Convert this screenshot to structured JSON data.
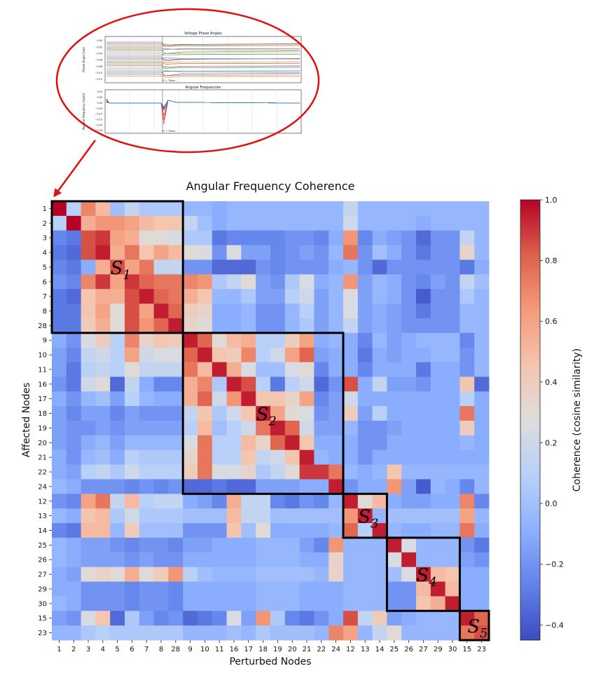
{
  "inset": {
    "plot1": {
      "title": "Voltage Phase Angles",
      "ylabel": "Phase Angle [rad]",
      "yticks": [
        "0.00",
        "−0.02",
        "−0.04",
        "−0.06",
        "−0.08",
        "−0.10",
        "−0.12"
      ],
      "event_label": "t* = 7secs"
    },
    "plot2": {
      "title": "Angular Frequencies",
      "ylabel": "Angular Frequency [rad/s]",
      "yticks": [
        "0.10",
        "0.05",
        "0.00",
        "−0.05",
        "−0.10",
        "−0.15",
        "−0.20",
        "−0.25"
      ],
      "event_label": "t* = 7secs"
    }
  },
  "chart_data": {
    "type": "heatmap",
    "title": "Angular Frequency Coherence",
    "xlabel": "Perturbed Nodes",
    "ylabel": "Affected Nodes",
    "nodes": [
      "1",
      "2",
      "3",
      "4",
      "5",
      "6",
      "7",
      "8",
      "28",
      "9",
      "10",
      "11",
      "16",
      "17",
      "18",
      "19",
      "20",
      "21",
      "22",
      "24",
      "12",
      "13",
      "14",
      "25",
      "26",
      "27",
      "29",
      "30",
      "15",
      "23"
    ],
    "colorbar": {
      "label": "Coherence (cosine similarity)",
      "vmin": -0.45,
      "vmax": 1.0,
      "ticks": [
        1.0,
        0.8,
        0.6,
        0.4,
        0.2,
        0.0,
        -0.2,
        -0.4
      ],
      "tick_labels": [
        "1.0",
        "0.8",
        "0.6",
        "0.4",
        "0.2",
        "0.0",
        "−0.2",
        "−0.4"
      ]
    },
    "clusters": [
      {
        "label": "S1",
        "base": "S",
        "sub": "1",
        "start": 0,
        "end": 8
      },
      {
        "label": "S2",
        "base": "S",
        "sub": "2",
        "start": 9,
        "end": 19
      },
      {
        "label": "S3",
        "base": "S",
        "sub": "3",
        "start": 20,
        "end": 22
      },
      {
        "label": "S4",
        "base": "S",
        "sub": "4",
        "start": 23,
        "end": 27
      },
      {
        "label": "S5",
        "base": "S",
        "sub": "5",
        "start": 28,
        "end": 29
      }
    ],
    "matrix": [
      [
        1.0,
        0.1,
        0.7,
        0.5,
        0.0,
        0.15,
        0.05,
        0.05,
        0.05,
        -0.05,
        -0.05,
        -0.1,
        -0.05,
        -0.05,
        -0.05,
        -0.05,
        -0.05,
        -0.05,
        -0.05,
        -0.05,
        0.15,
        -0.05,
        -0.05,
        -0.05,
        -0.05,
        -0.05,
        -0.05,
        -0.05,
        -0.05,
        -0.05
      ],
      [
        0.1,
        1.0,
        0.55,
        0.65,
        0.65,
        0.6,
        0.5,
        0.45,
        0.45,
        0.15,
        0.0,
        -0.1,
        -0.05,
        -0.05,
        -0.05,
        -0.05,
        -0.05,
        -0.05,
        -0.05,
        -0.05,
        0.2,
        -0.05,
        -0.05,
        -0.05,
        -0.05,
        -0.1,
        -0.05,
        -0.05,
        -0.05,
        -0.05
      ],
      [
        -0.25,
        -0.3,
        0.85,
        0.9,
        0.6,
        0.55,
        0.3,
        0.3,
        0.25,
        0.05,
        0.05,
        -0.3,
        -0.25,
        -0.25,
        -0.25,
        -0.25,
        -0.2,
        -0.2,
        -0.25,
        -0.1,
        0.65,
        -0.25,
        -0.1,
        -0.15,
        -0.2,
        -0.35,
        -0.2,
        -0.2,
        0.15,
        -0.05
      ],
      [
        -0.3,
        -0.35,
        0.85,
        0.95,
        0.55,
        0.75,
        0.45,
        0.6,
        0.5,
        0.3,
        0.25,
        -0.2,
        0.25,
        -0.15,
        -0.15,
        -0.25,
        -0.2,
        -0.15,
        -0.2,
        -0.05,
        0.75,
        -0.2,
        0.0,
        -0.1,
        -0.2,
        -0.3,
        -0.2,
        -0.2,
        0.35,
        -0.05
      ],
      [
        -0.25,
        -0.3,
        -0.1,
        0.55,
        0.85,
        0.6,
        0.75,
        0.15,
        0.15,
        -0.2,
        -0.2,
        -0.35,
        -0.35,
        -0.35,
        -0.2,
        -0.25,
        -0.2,
        -0.2,
        -0.2,
        -0.1,
        -0.05,
        -0.2,
        -0.35,
        -0.2,
        -0.2,
        -0.2,
        -0.2,
        -0.2,
        -0.3,
        -0.1
      ],
      [
        -0.2,
        -0.25,
        0.7,
        0.9,
        0.6,
        0.9,
        0.8,
        0.75,
        0.75,
        0.7,
        0.65,
        0.05,
        0.15,
        0.3,
        -0.15,
        -0.2,
        0.05,
        0.25,
        -0.1,
        -0.05,
        0.65,
        -0.15,
        -0.05,
        -0.1,
        -0.2,
        -0.25,
        -0.15,
        -0.2,
        0.15,
        0.0
      ],
      [
        -0.3,
        -0.35,
        0.45,
        0.55,
        0.55,
        0.85,
        0.95,
        0.8,
        0.75,
        0.55,
        0.45,
        -0.05,
        -0.05,
        0.05,
        -0.15,
        -0.15,
        0.1,
        0.2,
        -0.15,
        -0.05,
        0.25,
        -0.15,
        -0.05,
        -0.1,
        -0.2,
        -0.4,
        -0.2,
        -0.2,
        0.05,
        -0.05
      ],
      [
        -0.3,
        -0.3,
        0.45,
        0.6,
        0.3,
        0.85,
        0.6,
        0.95,
        0.8,
        0.4,
        0.35,
        -0.1,
        -0.1,
        -0.05,
        -0.2,
        -0.2,
        -0.05,
        0.1,
        -0.15,
        -0.05,
        0.25,
        -0.15,
        -0.1,
        -0.15,
        -0.2,
        -0.3,
        -0.2,
        -0.2,
        -0.05,
        -0.05
      ],
      [
        -0.3,
        -0.3,
        0.4,
        0.55,
        0.3,
        0.85,
        0.65,
        0.8,
        0.95,
        0.35,
        0.3,
        -0.1,
        -0.1,
        -0.05,
        -0.2,
        -0.2,
        -0.05,
        0.05,
        -0.15,
        -0.05,
        0.15,
        -0.15,
        -0.1,
        -0.15,
        -0.2,
        -0.2,
        -0.2,
        -0.2,
        -0.05,
        -0.05
      ],
      [
        -0.1,
        -0.2,
        0.25,
        0.4,
        0.1,
        0.7,
        0.35,
        0.45,
        0.4,
        0.95,
        0.8,
        0.3,
        0.5,
        0.55,
        0.1,
        0.1,
        0.4,
        0.6,
        -0.1,
        -0.05,
        -0.1,
        -0.25,
        -0.05,
        -0.15,
        -0.1,
        -0.05,
        -0.05,
        -0.05,
        -0.25,
        -0.05
      ],
      [
        -0.15,
        -0.25,
        0.15,
        0.2,
        0.1,
        0.6,
        0.2,
        0.25,
        0.25,
        0.8,
        0.95,
        0.45,
        0.4,
        0.7,
        0.1,
        0.2,
        0.6,
        0.8,
        -0.15,
        -0.1,
        -0.1,
        -0.3,
        -0.1,
        -0.15,
        -0.1,
        -0.1,
        -0.05,
        -0.05,
        -0.2,
        -0.05
      ],
      [
        -0.15,
        -0.3,
        0.1,
        0.15,
        0.1,
        0.3,
        0.15,
        0.15,
        0.15,
        0.75,
        0.5,
        0.95,
        0.55,
        0.25,
        0.0,
        0.0,
        0.25,
        0.3,
        -0.25,
        -0.1,
        -0.1,
        -0.25,
        -0.1,
        -0.1,
        -0.1,
        -0.3,
        -0.1,
        -0.1,
        -0.2,
        -0.05
      ],
      [
        -0.2,
        -0.3,
        0.2,
        0.3,
        -0.35,
        0.15,
        -0.1,
        -0.25,
        -0.25,
        0.55,
        0.7,
        0.05,
        0.95,
        0.85,
        0.1,
        -0.3,
        0.1,
        0.2,
        -0.35,
        -0.2,
        0.85,
        -0.1,
        0.15,
        -0.15,
        -0.15,
        -0.2,
        -0.1,
        -0.1,
        0.45,
        -0.35
      ],
      [
        -0.1,
        -0.2,
        -0.05,
        0.0,
        -0.15,
        0.1,
        -0.05,
        -0.1,
        -0.1,
        0.55,
        0.8,
        0.2,
        0.65,
        0.95,
        0.45,
        0.45,
        0.35,
        0.6,
        -0.25,
        -0.15,
        0.2,
        -0.1,
        -0.1,
        -0.1,
        -0.1,
        -0.1,
        -0.1,
        -0.1,
        0.1,
        -0.1
      ],
      [
        -0.15,
        -0.25,
        -0.15,
        -0.15,
        -0.25,
        -0.15,
        -0.2,
        -0.2,
        -0.2,
        0.15,
        0.45,
        0.05,
        0.2,
        0.45,
        0.95,
        0.6,
        0.3,
        0.25,
        -0.2,
        -0.15,
        0.4,
        -0.15,
        0.1,
        -0.1,
        -0.1,
        -0.1,
        -0.1,
        -0.1,
        0.75,
        -0.1
      ],
      [
        -0.15,
        -0.2,
        -0.2,
        -0.15,
        -0.2,
        -0.15,
        -0.15,
        -0.15,
        -0.15,
        0.1,
        0.5,
        0.0,
        0.1,
        0.2,
        0.75,
        0.95,
        0.8,
        0.2,
        -0.15,
        -0.15,
        -0.05,
        -0.2,
        -0.2,
        -0.15,
        -0.1,
        -0.1,
        -0.1,
        -0.1,
        0.4,
        -0.1
      ],
      [
        -0.15,
        -0.2,
        -0.1,
        -0.05,
        -0.15,
        -0.05,
        -0.05,
        -0.05,
        -0.05,
        0.25,
        0.75,
        0.1,
        0.1,
        0.5,
        0.35,
        0.8,
        0.95,
        0.45,
        -0.1,
        -0.1,
        -0.1,
        -0.2,
        -0.2,
        -0.1,
        -0.1,
        -0.1,
        -0.1,
        -0.1,
        -0.05,
        -0.1
      ],
      [
        -0.1,
        -0.2,
        -0.05,
        0.0,
        -0.1,
        0.1,
        0.05,
        0.05,
        0.05,
        0.35,
        0.75,
        0.1,
        0.1,
        0.45,
        0.15,
        0.2,
        0.45,
        0.95,
        -0.05,
        -0.1,
        -0.1,
        -0.2,
        -0.1,
        -0.1,
        -0.1,
        -0.1,
        -0.1,
        -0.1,
        -0.1,
        -0.1
      ],
      [
        -0.1,
        -0.15,
        0.1,
        0.15,
        0.05,
        0.2,
        0.1,
        0.1,
        0.1,
        0.4,
        0.75,
        0.25,
        0.25,
        0.35,
        0.05,
        0.15,
        0.3,
        0.9,
        0.9,
        0.75,
        -0.05,
        -0.1,
        -0.05,
        0.45,
        -0.05,
        -0.05,
        -0.05,
        -0.05,
        -0.05,
        -0.05
      ],
      [
        -0.05,
        -0.1,
        -0.2,
        -0.2,
        -0.2,
        -0.25,
        -0.2,
        -0.25,
        -0.2,
        -0.35,
        -0.35,
        -0.3,
        -0.35,
        -0.35,
        -0.15,
        -0.15,
        -0.15,
        -0.1,
        -0.1,
        0.95,
        -0.2,
        -0.1,
        -0.1,
        0.65,
        -0.15,
        -0.4,
        -0.05,
        -0.1,
        -0.25,
        -0.05
      ],
      [
        -0.2,
        -0.25,
        0.6,
        0.75,
        0.15,
        0.5,
        0.1,
        0.15,
        0.15,
        -0.1,
        -0.15,
        -0.25,
        0.55,
        0.15,
        0.15,
        -0.25,
        -0.3,
        -0.2,
        -0.25,
        -0.05,
        0.95,
        0.3,
        0.5,
        -0.1,
        -0.15,
        -0.15,
        -0.1,
        -0.1,
        0.7,
        -0.25
      ],
      [
        -0.05,
        -0.1,
        0.45,
        0.5,
        0.05,
        0.2,
        0.05,
        0.05,
        0.05,
        0.0,
        0.0,
        0.0,
        0.5,
        0.15,
        0.15,
        0.0,
        0.0,
        0.0,
        0.0,
        0.0,
        0.65,
        0.95,
        -0.05,
        0.0,
        0.0,
        0.0,
        0.0,
        0.0,
        0.6,
        -0.05
      ],
      [
        -0.25,
        -0.3,
        0.5,
        0.5,
        -0.05,
        0.4,
        0.0,
        0.0,
        0.0,
        -0.2,
        -0.2,
        -0.2,
        0.45,
        0.0,
        0.3,
        -0.1,
        -0.1,
        -0.1,
        -0.1,
        -0.05,
        0.8,
        0.1,
        0.95,
        -0.05,
        -0.1,
        -0.1,
        -0.05,
        -0.05,
        0.75,
        -0.1
      ],
      [
        -0.05,
        -0.1,
        -0.15,
        -0.15,
        -0.2,
        -0.25,
        -0.2,
        -0.2,
        -0.25,
        -0.15,
        -0.15,
        -0.1,
        -0.1,
        -0.1,
        -0.05,
        -0.05,
        -0.05,
        -0.15,
        -0.25,
        0.65,
        -0.05,
        -0.05,
        -0.05,
        0.95,
        0.25,
        -0.05,
        -0.05,
        -0.05,
        -0.2,
        -0.3
      ],
      [
        -0.05,
        -0.1,
        -0.15,
        -0.15,
        -0.15,
        -0.2,
        -0.15,
        -0.2,
        -0.2,
        -0.1,
        -0.1,
        -0.1,
        -0.1,
        -0.1,
        -0.05,
        -0.05,
        -0.05,
        -0.1,
        -0.1,
        0.35,
        -0.05,
        -0.05,
        -0.05,
        0.25,
        0.95,
        -0.05,
        -0.05,
        -0.05,
        -0.15,
        -0.2
      ],
      [
        -0.1,
        -0.15,
        0.3,
        0.35,
        0.3,
        0.55,
        0.3,
        0.4,
        0.65,
        0.1,
        0.0,
        -0.05,
        -0.05,
        -0.05,
        0.0,
        0.0,
        0.0,
        0.0,
        -0.05,
        0.35,
        -0.05,
        -0.05,
        -0.05,
        0.0,
        0.25,
        0.95,
        0.5,
        0.45,
        -0.1,
        -0.1
      ],
      [
        -0.1,
        -0.1,
        -0.2,
        -0.2,
        -0.2,
        -0.25,
        -0.2,
        -0.2,
        -0.25,
        -0.1,
        -0.1,
        -0.1,
        -0.1,
        -0.1,
        -0.05,
        -0.05,
        -0.05,
        -0.1,
        -0.1,
        -0.1,
        -0.05,
        -0.05,
        -0.05,
        -0.2,
        -0.2,
        0.5,
        0.95,
        0.5,
        -0.1,
        -0.1
      ],
      [
        -0.05,
        -0.1,
        -0.2,
        -0.2,
        -0.2,
        -0.25,
        -0.2,
        -0.2,
        -0.25,
        -0.1,
        -0.1,
        -0.1,
        -0.1,
        -0.1,
        -0.05,
        -0.05,
        -0.05,
        -0.1,
        -0.1,
        -0.1,
        -0.05,
        -0.05,
        -0.05,
        -0.2,
        -0.2,
        0.45,
        0.55,
        0.95,
        -0.1,
        -0.1
      ],
      [
        -0.15,
        -0.2,
        0.25,
        0.45,
        -0.35,
        0.05,
        -0.15,
        -0.25,
        -0.2,
        -0.35,
        -0.3,
        -0.25,
        0.25,
        -0.15,
        0.65,
        0.05,
        -0.25,
        -0.3,
        -0.2,
        -0.1,
        0.85,
        0.15,
        0.4,
        -0.15,
        -0.1,
        -0.05,
        -0.05,
        -0.05,
        0.95,
        0.8
      ],
      [
        -0.05,
        -0.05,
        0.05,
        0.1,
        0.05,
        0.05,
        0.05,
        0.05,
        0.05,
        -0.05,
        -0.05,
        -0.05,
        0.0,
        -0.05,
        0.05,
        0.0,
        0.0,
        0.0,
        -0.05,
        0.7,
        0.6,
        -0.05,
        0.15,
        0.3,
        -0.05,
        -0.05,
        -0.05,
        -0.05,
        0.75,
        0.85
      ]
    ]
  }
}
